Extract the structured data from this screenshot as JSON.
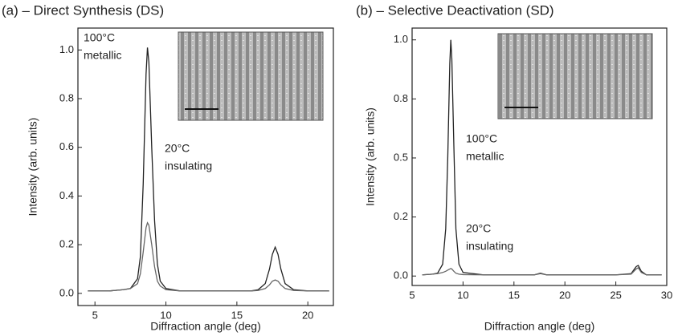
{
  "chart_data": [
    {
      "type": "line",
      "title": "(a) – Direct Synthesis (DS)",
      "x_label": "Diffraction angle (deg)",
      "y_label": "Intensity (arb. units)",
      "xlim": [
        3.8,
        21.8
      ],
      "xticks": [
        5,
        10,
        15,
        20
      ],
      "ylim": [
        -0.05,
        1.09
      ],
      "yticks": [
        {
          "value": 0,
          "label": "0.0"
        },
        {
          "value": 0.2,
          "label": "0.2"
        },
        {
          "value": 0.4,
          "label": "0.4"
        },
        {
          "value": 0.6,
          "label": "0.6"
        },
        {
          "value": 0.8,
          "label": "0.8"
        },
        {
          "value": 1.0,
          "label": "1.0"
        }
      ],
      "annotations": [
        "100°C",
        "metallic",
        "20°C",
        "insulating"
      ],
      "x": [
        4.5,
        5,
        6,
        7,
        7.5,
        8,
        8.2,
        8.4,
        8.6,
        8.7,
        8.8,
        9.0,
        9.2,
        9.4,
        9.6,
        10,
        11,
        12,
        13,
        14,
        15,
        16,
        16.5,
        17,
        17.3,
        17.5,
        17.7,
        17.9,
        18.1,
        18.4,
        19,
        20,
        21,
        21.5
      ],
      "series": [
        {
          "color": "#222222",
          "values": [
            0.01,
            0.01,
            0.01,
            0.015,
            0.02,
            0.06,
            0.15,
            0.45,
            0.9,
            1.01,
            0.95,
            0.6,
            0.3,
            0.12,
            0.05,
            0.02,
            0.01,
            0.01,
            0.01,
            0.01,
            0.01,
            0.01,
            0.015,
            0.04,
            0.1,
            0.16,
            0.19,
            0.16,
            0.1,
            0.04,
            0.015,
            0.01,
            0.01,
            0.01
          ]
        },
        {
          "color": "#666666",
          "values": [
            0.01,
            0.01,
            0.01,
            0.015,
            0.02,
            0.04,
            0.08,
            0.17,
            0.27,
            0.29,
            0.28,
            0.2,
            0.11,
            0.05,
            0.03,
            0.015,
            0.01,
            0.01,
            0.01,
            0.01,
            0.01,
            0.01,
            0.012,
            0.02,
            0.035,
            0.05,
            0.055,
            0.05,
            0.035,
            0.02,
            0.012,
            0.01,
            0.01,
            0.01
          ]
        }
      ]
    },
    {
      "type": "line",
      "title": "(b) – Selective Deactivation (SD)",
      "x_label": "Diffraction angle (deg)",
      "y_label": "Intensity (arb. units)",
      "xlim": [
        5,
        30
      ],
      "xticks": [
        5,
        10,
        15,
        20,
        25,
        30
      ],
      "ylim": [
        -0.04,
        1.05
      ],
      "yticks": [
        {
          "value": 0,
          "label": "0.0"
        },
        {
          "value": 0.25,
          "label": "0.2"
        },
        {
          "value": 0.5,
          "label": "0.5"
        },
        {
          "value": 0.75,
          "label": "0.8"
        },
        {
          "value": 1.0,
          "label": "1.0"
        }
      ],
      "annotations": [
        "100°C",
        "metallic",
        "20°C",
        "insulating"
      ],
      "x": [
        6,
        7,
        7.5,
        8,
        8.3,
        8.5,
        8.7,
        8.8,
        8.9,
        9.1,
        9.3,
        9.6,
        10,
        12,
        15,
        17,
        17.6,
        18.2,
        20,
        25,
        26.5,
        27,
        27.2,
        27.5,
        28,
        29.5
      ],
      "series": [
        {
          "color": "#222222",
          "values": [
            0.005,
            0.008,
            0.012,
            0.05,
            0.2,
            0.5,
            0.9,
            1.0,
            0.92,
            0.55,
            0.2,
            0.05,
            0.015,
            0.005,
            0.005,
            0.005,
            0.012,
            0.005,
            0.005,
            0.005,
            0.01,
            0.04,
            0.045,
            0.02,
            0.005,
            0.005
          ]
        },
        {
          "color": "#666666",
          "values": [
            0.005,
            0.008,
            0.01,
            0.015,
            0.02,
            0.025,
            0.03,
            0.032,
            0.03,
            0.02,
            0.012,
            0.008,
            0.006,
            0.005,
            0.005,
            0.005,
            0.01,
            0.005,
            0.005,
            0.005,
            0.008,
            0.03,
            0.035,
            0.015,
            0.005,
            0.005
          ]
        }
      ]
    }
  ]
}
